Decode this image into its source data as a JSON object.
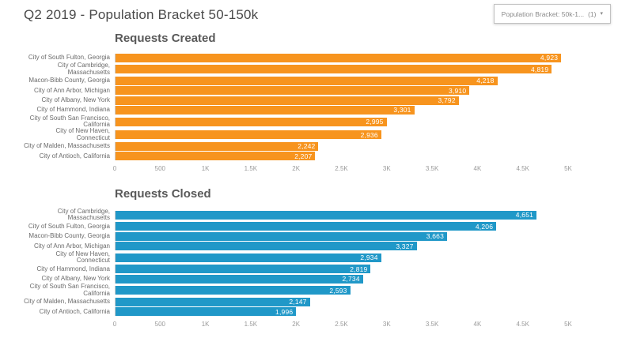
{
  "header": {
    "title": "Q2 2019 - Population Bracket 50-150k",
    "filter": {
      "label": "Population Bracket: 50k-1...",
      "count": "(1)",
      "caret": "▾"
    }
  },
  "colors": {
    "created_bar": "#F7941E",
    "closed_bar": "#2098C8",
    "axis_line": "#cccccc",
    "title_text": "#4a4a4a",
    "heading_text": "#595959"
  },
  "chart_data": [
    {
      "type": "bar",
      "orientation": "horizontal",
      "title": "Requests Created",
      "color": "#F7941E",
      "xlim": [
        0,
        5000
      ],
      "x_ticks": [
        "0",
        "500",
        "1K",
        "1.5K",
        "2K",
        "2.5K",
        "3K",
        "3.5K",
        "4K",
        "4.5K",
        "5K"
      ],
      "grid": false,
      "legend": "none",
      "categories": [
        "City of South Fulton, Georgia",
        "City of Cambridge, Massachusetts",
        "Macon-Bibb County, Georgia",
        "City of Ann Arbor, Michigan",
        "City of Albany, New York",
        "City of Hammond, Indiana",
        "City of South San Francisco, California",
        "City of New Haven, Connecticut",
        "City of Malden, Massachusetts",
        "City of Antioch, California"
      ],
      "values": [
        4923,
        4819,
        4218,
        3910,
        3792,
        3301,
        2995,
        2936,
        2242,
        2207
      ],
      "value_labels": [
        "4,923",
        "4,819",
        "4,218",
        "3,910",
        "3,792",
        "3,301",
        "2,995",
        "2,936",
        "2,242",
        "2,207"
      ]
    },
    {
      "type": "bar",
      "orientation": "horizontal",
      "title": "Requests Closed",
      "color": "#2098C8",
      "xlim": [
        0,
        5000
      ],
      "x_ticks": [
        "0",
        "500",
        "1K",
        "1.5K",
        "2K",
        "2.5K",
        "3K",
        "3.5K",
        "4K",
        "4.5K",
        "5K"
      ],
      "grid": false,
      "legend": "none",
      "categories": [
        "City of Cambridge, Massachusetts",
        "City of South Fulton, Georgia",
        "Macon-Bibb County, Georgia",
        "City of Ann Arbor, Michigan",
        "City of New Haven, Connecticut",
        "City of Hammond, Indiana",
        "City of Albany, New York",
        "City of South San Francisco, California",
        "City of Malden, Massachusetts",
        "City of Antioch, California"
      ],
      "values": [
        4651,
        4206,
        3663,
        3327,
        2934,
        2819,
        2734,
        2593,
        2147,
        1996
      ],
      "value_labels": [
        "4,651",
        "4,206",
        "3,663",
        "3,327",
        "2,934",
        "2,819",
        "2,734",
        "2,593",
        "2,147",
        "1,996"
      ]
    }
  ]
}
